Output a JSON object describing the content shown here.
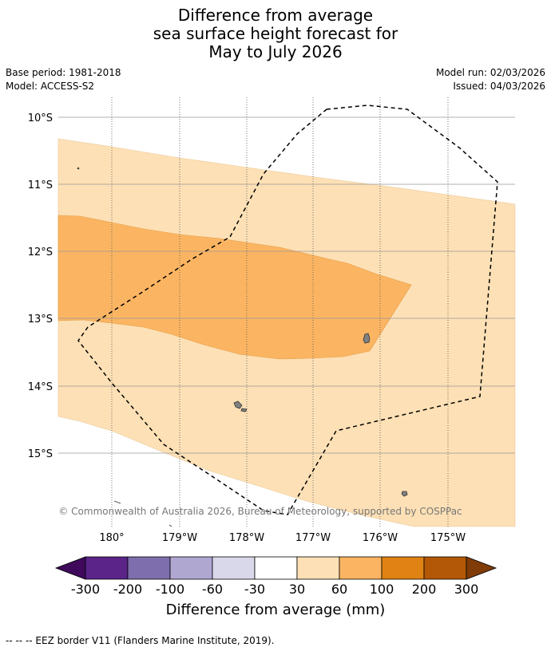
{
  "title_lines": [
    "Difference from average",
    "sea surface height forecast for",
    "May to July 2026"
  ],
  "meta": {
    "base_period": "Base period: 1981-2018",
    "model": "Model: ACCESS-S2",
    "model_run": "Model run: 02/03/2026",
    "issued": "Issued: 04/03/2026"
  },
  "map": {
    "lat_labels": [
      "10°S",
      "11°S",
      "12°S",
      "13°S",
      "14°S",
      "15°S"
    ],
    "lon_labels": [
      "180°",
      "179°W",
      "178°W",
      "177°W",
      "176°W",
      "175°W"
    ],
    "credit": "© Commonwealth of Australia 2026, Bureau of Meteorology, supported by COSPPac",
    "fill_colors": {
      "band_30_60": "#fde0b5",
      "band_60_100": "#fbb562",
      "land": "#808080"
    }
  },
  "colorbar": {
    "ticks": [
      "-300",
      "-200",
      "-100",
      "-60",
      "-30",
      "30",
      "60",
      "100",
      "200",
      "300"
    ],
    "colors": [
      "#3f0a5b",
      "#5a2488",
      "#7f6eae",
      "#b0a7d1",
      "#d9d8eb",
      "#ffffff",
      "#fde0b5",
      "#fbb562",
      "#e08214",
      "#b35806",
      "#7f3b08"
    ],
    "label": "Difference from average (mm)"
  },
  "footer": "--  --  -- EEZ border V11 (Flanders Marine Institute, 2019)."
}
